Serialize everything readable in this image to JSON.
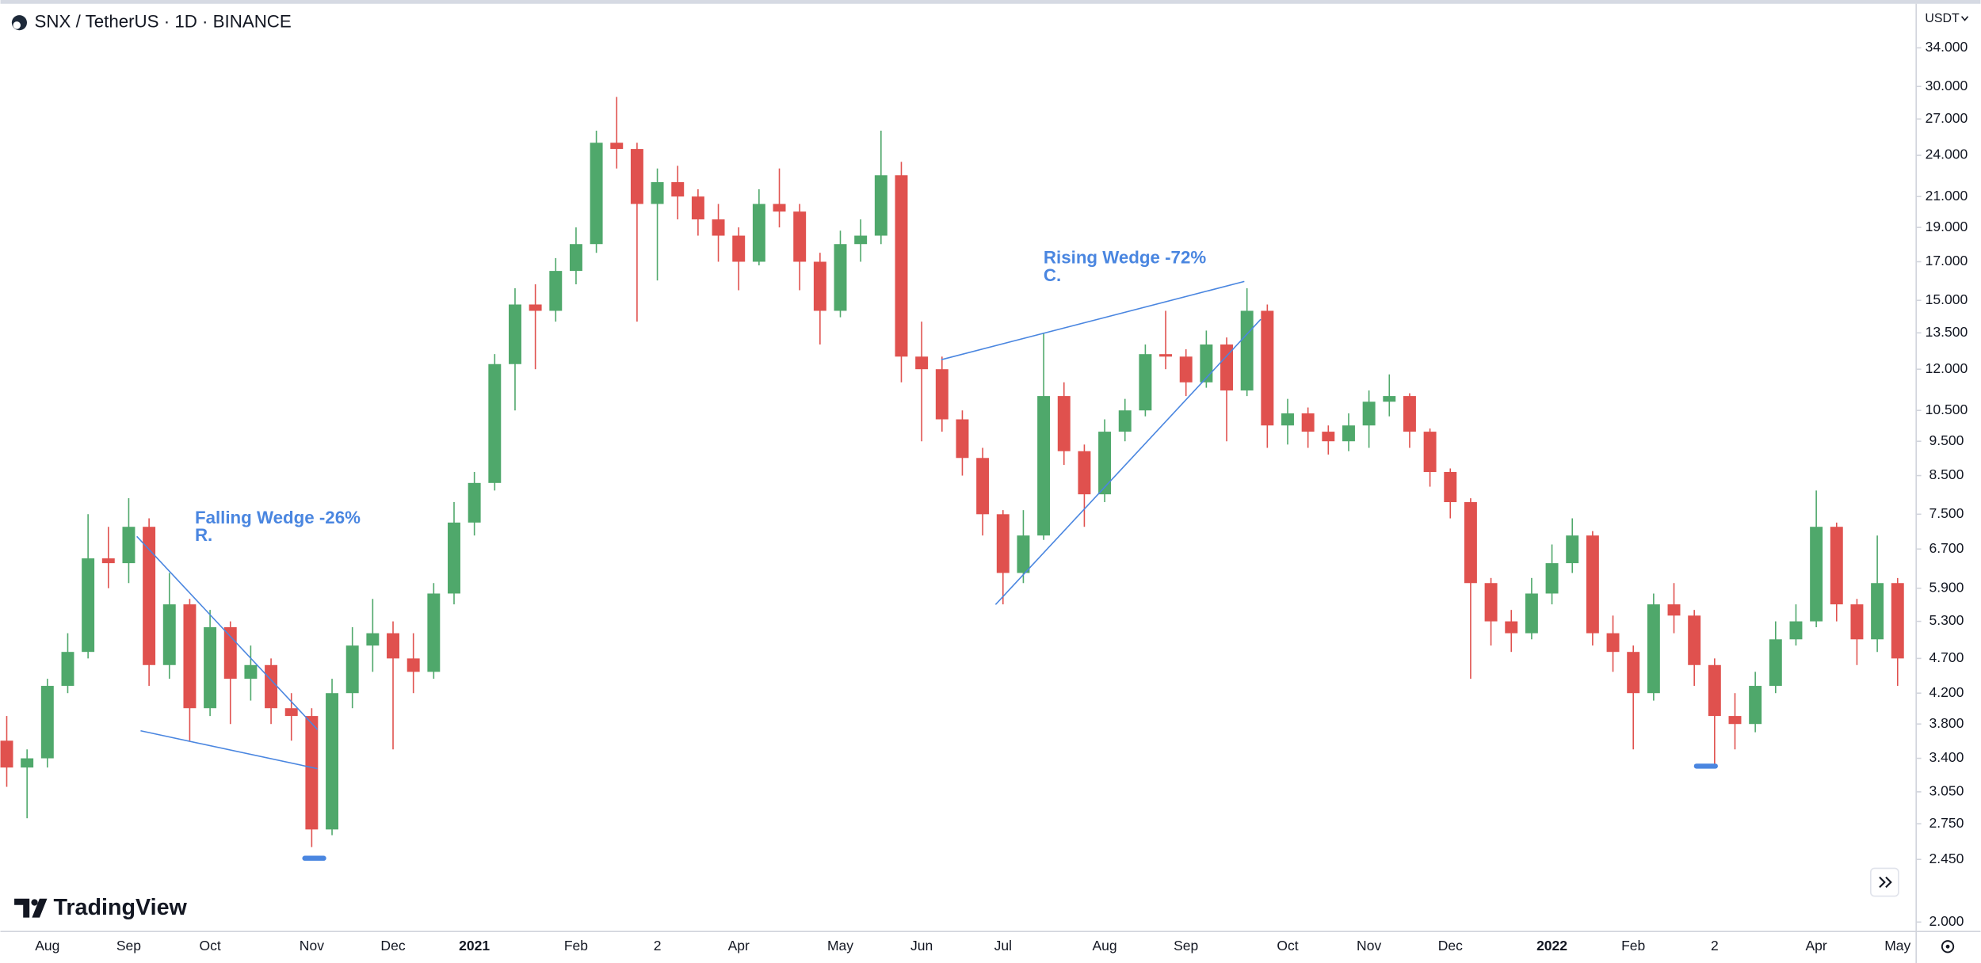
{
  "chart_data": {
    "type": "candlestick",
    "title": "SNX / TetherUS · 1D · BINANCE",
    "currency": "USDT",
    "watermark": "TradingView",
    "annotations": [
      {
        "lines": [
          "Falling Wedge -26%",
          "R."
        ]
      },
      {
        "lines": [
          "Rising Wedge -72%",
          "C."
        ]
      }
    ],
    "up_color": "#4fa86b",
    "down_color": "#e0514e",
    "log_scale": true,
    "grid": false,
    "ylim": [
      1.94,
      38.9
    ],
    "yticks": [
      {
        "value": 34,
        "label": "34.000"
      },
      {
        "value": 30,
        "label": "30.000"
      },
      {
        "value": 27,
        "label": "27.000"
      },
      {
        "value": 24,
        "label": "24.000"
      },
      {
        "value": 21,
        "label": "21.000"
      },
      {
        "value": 19,
        "label": "19.000"
      },
      {
        "value": 17,
        "label": "17.000"
      },
      {
        "value": 15,
        "label": "15.000"
      },
      {
        "value": 13.5,
        "label": "13.500"
      },
      {
        "value": 12,
        "label": "12.000"
      },
      {
        "value": 10.5,
        "label": "10.500"
      },
      {
        "value": 9.5,
        "label": "9.500"
      },
      {
        "value": 8.5,
        "label": "8.500"
      },
      {
        "value": 7.5,
        "label": "7.500"
      },
      {
        "value": 6.7,
        "label": "6.700"
      },
      {
        "value": 5.9,
        "label": "5.900"
      },
      {
        "value": 5.3,
        "label": "5.300"
      },
      {
        "value": 4.7,
        "label": "4.700"
      },
      {
        "value": 4.2,
        "label": "4.200"
      },
      {
        "value": 3.8,
        "label": "3.800"
      },
      {
        "value": 3.4,
        "label": "3.400"
      },
      {
        "value": 3.05,
        "label": "3.050"
      },
      {
        "value": 2.75,
        "label": "2.750"
      },
      {
        "value": 2.45,
        "label": "2.450"
      },
      {
        "value": 2.0,
        "label": "2.000"
      }
    ],
    "categories": [
      null,
      null,
      "Aug",
      null,
      null,
      null,
      "Sep",
      null,
      null,
      null,
      "Oct",
      null,
      null,
      null,
      null,
      "Nov",
      null,
      null,
      null,
      "Dec",
      null,
      null,
      null,
      "2021",
      null,
      null,
      null,
      null,
      "Feb",
      null,
      null,
      null,
      "2",
      null,
      null,
      null,
      "Apr",
      null,
      null,
      null,
      null,
      "May",
      null,
      null,
      null,
      "Jun",
      null,
      null,
      null,
      "Jul",
      null,
      null,
      null,
      null,
      "Aug",
      null,
      null,
      null,
      "Sep",
      null,
      null,
      null,
      null,
      "Oct",
      null,
      null,
      null,
      "Nov",
      null,
      null,
      null,
      "Dec",
      null,
      null,
      null,
      null,
      "2022",
      null,
      null,
      null,
      "Feb",
      null,
      null,
      null,
      "2",
      null,
      null,
      null,
      null,
      "Apr",
      null,
      null,
      null,
      "May"
    ],
    "open": [
      3.6,
      3.3,
      3.4,
      4.3,
      4.8,
      6.5,
      6.4,
      7.2,
      4.6,
      5.6,
      4.0,
      5.2,
      4.4,
      4.6,
      4.0,
      3.9,
      2.7,
      4.2,
      4.9,
      5.1,
      4.7,
      4.5,
      5.8,
      7.3,
      8.3,
      12.2,
      14.8,
      14.5,
      16.5,
      18.0,
      25.0,
      24.5,
      20.5,
      22.0,
      21.0,
      19.5,
      18.5,
      17.0,
      20.5,
      20.0,
      17.0,
      14.5,
      18.0,
      18.5,
      22.5,
      12.5,
      12.0,
      10.2,
      9.0,
      7.5,
      6.2,
      7.0,
      11.0,
      9.2,
      8.0,
      9.8,
      10.5,
      12.6,
      12.5,
      11.5,
      13.0,
      11.2,
      14.5,
      10.0,
      10.4,
      9.8,
      9.5,
      10.0,
      10.8,
      11.0,
      9.8,
      8.6,
      7.8,
      6.0,
      5.3,
      5.1,
      5.8,
      6.4,
      7.0,
      5.1,
      4.8,
      4.2,
      5.6,
      5.4,
      4.6,
      3.9,
      3.8,
      4.3,
      5.0,
      5.3,
      7.2,
      5.6,
      5.0,
      6.0
    ],
    "high": [
      3.9,
      3.5,
      4.4,
      5.1,
      7.5,
      7.2,
      7.9,
      7.4,
      6.2,
      5.7,
      5.5,
      5.3,
      4.9,
      4.7,
      4.2,
      4.0,
      4.4,
      5.2,
      5.7,
      5.3,
      5.1,
      6.0,
      7.8,
      8.6,
      12.6,
      15.6,
      15.8,
      17.2,
      19.0,
      26.0,
      29.0,
      25.0,
      23.0,
      23.2,
      21.5,
      20.5,
      19.0,
      21.5,
      23.0,
      20.5,
      17.5,
      18.8,
      19.5,
      26.0,
      23.5,
      14.0,
      12.5,
      10.5,
      9.3,
      7.6,
      7.6,
      13.5,
      11.5,
      9.4,
      10.2,
      10.9,
      13.0,
      14.5,
      12.8,
      13.6,
      13.3,
      15.6,
      14.8,
      10.9,
      10.6,
      10.0,
      10.4,
      11.2,
      11.8,
      11.1,
      9.9,
      8.7,
      7.9,
      6.1,
      5.5,
      6.1,
      6.8,
      7.4,
      7.1,
      5.4,
      4.9,
      5.8,
      6.0,
      5.5,
      4.7,
      4.2,
      4.5,
      5.3,
      5.6,
      8.1,
      7.3,
      5.7,
      7.0,
      6.1
    ],
    "low": [
      3.1,
      2.8,
      3.3,
      4.2,
      4.7,
      5.9,
      6.0,
      4.3,
      4.4,
      3.6,
      3.9,
      3.8,
      4.1,
      3.8,
      3.6,
      2.55,
      2.65,
      4.0,
      4.5,
      3.5,
      4.2,
      4.4,
      5.6,
      7.0,
      8.1,
      10.5,
      12.0,
      14.0,
      15.8,
      17.5,
      23.0,
      14.0,
      16.0,
      19.5,
      18.5,
      17.0,
      15.5,
      16.8,
      19.0,
      15.5,
      13.0,
      14.2,
      17.0,
      18.0,
      11.5,
      9.5,
      9.8,
      8.5,
      7.0,
      5.6,
      6.0,
      6.9,
      8.8,
      7.2,
      7.8,
      9.5,
      10.3,
      12.0,
      11.0,
      11.3,
      9.5,
      11.0,
      9.3,
      9.4,
      9.3,
      9.1,
      9.2,
      9.3,
      10.3,
      9.3,
      8.2,
      7.4,
      4.4,
      4.9,
      4.8,
      5.0,
      5.6,
      6.2,
      4.9,
      4.5,
      3.5,
      4.1,
      5.1,
      4.3,
      3.3,
      3.5,
      3.7,
      4.2,
      4.9,
      5.2,
      5.3,
      4.6,
      4.8,
      4.3
    ],
    "close": [
      3.3,
      3.4,
      4.3,
      4.8,
      6.5,
      6.4,
      7.2,
      4.6,
      5.6,
      4.0,
      5.2,
      4.4,
      4.6,
      4.0,
      3.9,
      2.7,
      4.2,
      4.9,
      5.1,
      4.7,
      4.5,
      5.8,
      7.3,
      8.3,
      12.2,
      14.8,
      14.5,
      16.5,
      18.0,
      25.0,
      24.5,
      20.5,
      22.0,
      21.0,
      19.5,
      18.5,
      17.0,
      20.5,
      20.0,
      17.0,
      14.5,
      18.0,
      18.5,
      22.5,
      12.5,
      12.0,
      10.2,
      9.0,
      7.5,
      6.2,
      7.0,
      11.0,
      9.2,
      8.0,
      9.8,
      10.5,
      12.6,
      12.5,
      11.5,
      13.0,
      11.2,
      14.5,
      10.0,
      10.4,
      9.8,
      9.5,
      10.0,
      10.8,
      11.0,
      9.8,
      8.6,
      7.8,
      6.0,
      5.3,
      5.1,
      5.8,
      6.4,
      7.0,
      5.1,
      4.8,
      4.2,
      5.6,
      5.4,
      4.6,
      3.9,
      3.8,
      4.3,
      5.0,
      5.3,
      7.2,
      5.6,
      5.0,
      6.0,
      4.7
    ]
  }
}
